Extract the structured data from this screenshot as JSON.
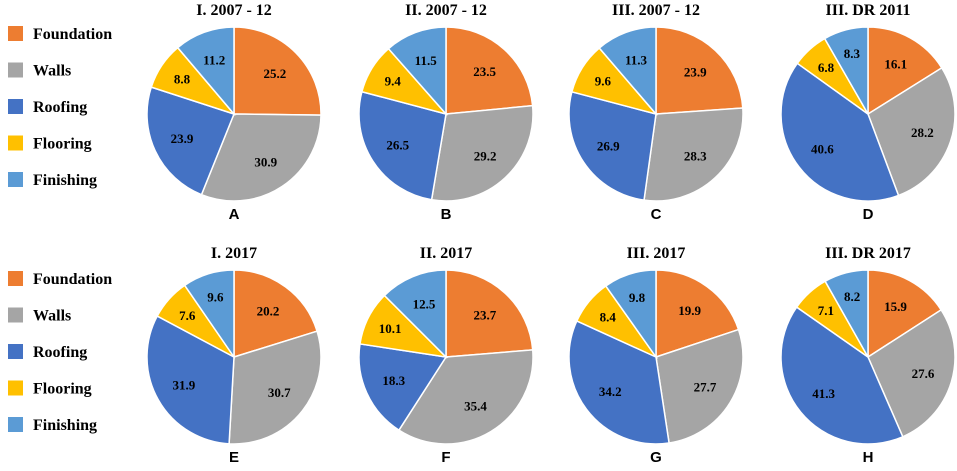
{
  "colors": {
    "Foundation": "#ED7D31",
    "Walls": "#A5A5A5",
    "Roofing": "#4472C4",
    "Flooring": "#FFC000",
    "Finishing": "#5B9BD5"
  },
  "legends": [
    {
      "items": [
        "Foundation",
        "Walls",
        "Roofing",
        "Flooring",
        "Finishing"
      ]
    },
    {
      "items": [
        "Foundation",
        "Walls",
        "Roofing",
        "Flooring",
        "Finishing"
      ]
    }
  ],
  "chart_data": [
    {
      "type": "pie",
      "title": "I. 2007 - 12",
      "letter": "A",
      "categories": [
        "Foundation",
        "Walls",
        "Roofing",
        "Flooring",
        "Finishing"
      ],
      "values": [
        25.2,
        30.9,
        23.9,
        8.8,
        11.2
      ]
    },
    {
      "type": "pie",
      "title": "II. 2007 - 12",
      "letter": "B",
      "categories": [
        "Foundation",
        "Walls",
        "Roofing",
        "Flooring",
        "Finishing"
      ],
      "values": [
        23.5,
        29.2,
        26.5,
        9.4,
        11.5
      ]
    },
    {
      "type": "pie",
      "title": "III. 2007 - 12",
      "letter": "C",
      "categories": [
        "Foundation",
        "Walls",
        "Roofing",
        "Flooring",
        "Finishing"
      ],
      "values": [
        23.9,
        28.3,
        26.9,
        9.6,
        11.3
      ]
    },
    {
      "type": "pie",
      "title": "III. DR 2011",
      "letter": "D",
      "categories": [
        "Foundation",
        "Walls",
        "Roofing",
        "Flooring",
        "Finishing"
      ],
      "values": [
        16.1,
        28.2,
        40.6,
        6.8,
        8.3
      ]
    },
    {
      "type": "pie",
      "title": "I. 2017",
      "letter": "E",
      "categories": [
        "Foundation",
        "Walls",
        "Roofing",
        "Flooring",
        "Finishing"
      ],
      "values": [
        20.2,
        30.7,
        31.9,
        7.6,
        9.6
      ]
    },
    {
      "type": "pie",
      "title": "II. 2017",
      "letter": "F",
      "categories": [
        "Foundation",
        "Walls",
        "Roofing",
        "Flooring",
        "Finishing"
      ],
      "values": [
        23.7,
        35.4,
        18.3,
        10.1,
        12.5
      ]
    },
    {
      "type": "pie",
      "title": "III. 2017",
      "letter": "G",
      "categories": [
        "Foundation",
        "Walls",
        "Roofing",
        "Flooring",
        "Finishing"
      ],
      "values": [
        19.9,
        27.7,
        34.2,
        8.4,
        9.8
      ]
    },
    {
      "type": "pie",
      "title": "III. DR 2017",
      "letter": "H",
      "categories": [
        "Foundation",
        "Walls",
        "Roofing",
        "Flooring",
        "Finishing"
      ],
      "values": [
        15.9,
        27.6,
        41.3,
        7.1,
        8.2
      ]
    }
  ]
}
